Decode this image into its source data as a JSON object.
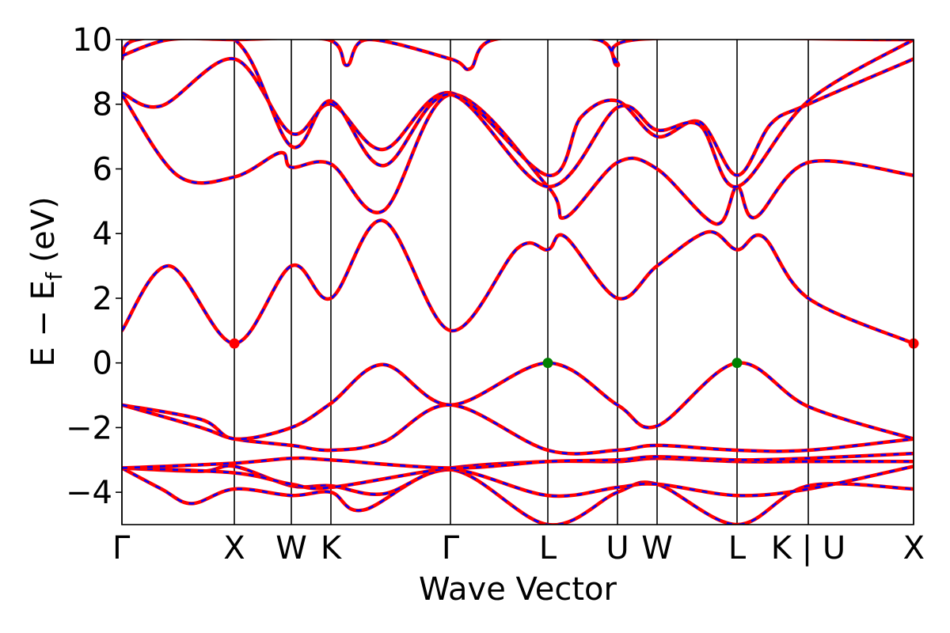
{
  "chart_data": {
    "type": "line",
    "xlabel": "Wave Vector",
    "ylabel": "E − E",
    "ylabel_sub": "f",
    "ylabel_unit": " (eV)",
    "ylim": [
      -5,
      10
    ],
    "yticks": [
      -4,
      -2,
      0,
      2,
      4,
      6,
      8,
      10
    ],
    "ytick_labels": [
      "−4",
      "−2",
      "0",
      "2",
      "4",
      "6",
      "8",
      "10"
    ],
    "kpath_range": [
      0,
      10
    ],
    "kpoints": [
      {
        "label": "Γ",
        "x": 0.0
      },
      {
        "label": "X",
        "x": 1.42
      },
      {
        "label": "W",
        "x": 2.14
      },
      {
        "label": "K",
        "x": 2.64
      },
      {
        "label": "Γ",
        "x": 4.15
      },
      {
        "label": "L",
        "x": 5.38
      },
      {
        "label": "U",
        "x": 6.26
      },
      {
        "label": "W",
        "x": 6.76
      },
      {
        "label": "L",
        "x": 7.77
      },
      {
        "label": "K | U",
        "x": 8.67
      },
      {
        "label": "X",
        "x": 10.0
      }
    ],
    "line_colors": {
      "dft": "#ff0000",
      "wannier": "#0000ff"
    },
    "markers": [
      {
        "x": 1.42,
        "y": 0.6,
        "color": "#ff0000",
        "meaning": "CBM"
      },
      {
        "x": 10.0,
        "y": 0.6,
        "color": "#ff0000",
        "meaning": "CBM"
      },
      {
        "x": 5.38,
        "y": 0.0,
        "color": "#008000",
        "meaning": "VBM"
      },
      {
        "x": 7.77,
        "y": 0.0,
        "color": "#008000",
        "meaning": "VBM"
      }
    ],
    "bands": [
      {
        "name": "",
        "points": [
          [
            0,
            -3.25
          ],
          [
            0.5,
            -3.9
          ],
          [
            0.88,
            -4.35
          ],
          [
            1.42,
            -3.9
          ],
          [
            2.14,
            -4.1
          ],
          [
            2.64,
            -4.0
          ],
          [
            3.05,
            -4.55
          ],
          [
            4.15,
            -3.3
          ],
          [
            5.38,
            -5.0
          ],
          [
            6.26,
            -4.0
          ],
          [
            6.76,
            -3.75
          ],
          [
            7.77,
            -5.0
          ],
          [
            8.67,
            -3.8
          ],
          [
            10.0,
            -3.9
          ]
        ]
      },
      {
        "name": "",
        "points": [
          [
            0,
            -3.25
          ],
          [
            1.0,
            -3.35
          ],
          [
            1.42,
            -3.2
          ],
          [
            2.14,
            -3.8
          ],
          [
            2.64,
            -3.8
          ],
          [
            3.3,
            -4.05
          ],
          [
            4.15,
            -3.3
          ],
          [
            5.38,
            -4.1
          ],
          [
            6.26,
            -3.85
          ],
          [
            6.76,
            -3.75
          ],
          [
            7.77,
            -4.1
          ],
          [
            8.67,
            -3.9
          ],
          [
            10.0,
            -3.2
          ]
        ]
      },
      {
        "name": "",
        "points": [
          [
            0,
            -3.25
          ],
          [
            1.42,
            -3.4
          ],
          [
            2.14,
            -3.75
          ],
          [
            2.64,
            -3.85
          ],
          [
            4.15,
            -3.25
          ],
          [
            5.38,
            -3.05
          ],
          [
            6.26,
            -3.05
          ],
          [
            6.76,
            -2.95
          ],
          [
            7.77,
            -3.05
          ],
          [
            8.67,
            -3.05
          ],
          [
            10.0,
            -3.05
          ]
        ]
      },
      {
        "name": "",
        "points": [
          [
            0,
            -3.25
          ],
          [
            1.42,
            -3.1
          ],
          [
            2.14,
            -2.95
          ],
          [
            2.64,
            -3.0
          ],
          [
            4.15,
            -3.25
          ],
          [
            5.38,
            -3.05
          ],
          [
            6.26,
            -3.0
          ],
          [
            6.76,
            -2.9
          ],
          [
            7.77,
            -3.0
          ],
          [
            8.67,
            -2.95
          ],
          [
            10.0,
            -2.8
          ]
        ]
      },
      {
        "name": "",
        "points": [
          [
            0,
            -1.3
          ],
          [
            1.0,
            -2.0
          ],
          [
            1.42,
            -2.35
          ],
          [
            2.14,
            -2.55
          ],
          [
            2.64,
            -2.7
          ],
          [
            3.3,
            -2.45
          ],
          [
            4.15,
            -1.3
          ],
          [
            5.38,
            -2.7
          ],
          [
            6.26,
            -2.7
          ],
          [
            6.76,
            -2.55
          ],
          [
            7.77,
            -2.7
          ],
          [
            8.67,
            -2.7
          ],
          [
            10.0,
            -2.35
          ]
        ]
      },
      {
        "name": "",
        "points": [
          [
            0,
            -1.3
          ],
          [
            1.0,
            -1.75
          ],
          [
            1.42,
            -2.35
          ],
          [
            2.14,
            -2.0
          ],
          [
            2.64,
            -1.25
          ],
          [
            3.3,
            -0.05
          ],
          [
            4.15,
            -1.3
          ],
          [
            5.38,
            0.0
          ],
          [
            6.26,
            -1.3
          ],
          [
            6.76,
            -1.95
          ],
          [
            7.77,
            0.0
          ],
          [
            8.67,
            -1.35
          ],
          [
            10.0,
            -2.35
          ]
        ]
      },
      {
        "name": "",
        "points": [
          [
            0,
            1.0
          ],
          [
            0.6,
            3.0
          ],
          [
            1.42,
            0.6
          ],
          [
            2.14,
            3.0
          ],
          [
            2.64,
            2.0
          ],
          [
            3.3,
            4.4
          ],
          [
            4.15,
            1.0
          ],
          [
            5.0,
            3.55
          ],
          [
            5.38,
            3.5
          ],
          [
            5.6,
            3.9
          ],
          [
            6.26,
            2.0
          ],
          [
            6.76,
            3.0
          ],
          [
            7.4,
            4.05
          ],
          [
            7.77,
            3.5
          ],
          [
            8.1,
            3.9
          ],
          [
            8.67,
            2.0
          ],
          [
            10.0,
            0.6
          ]
        ]
      },
      {
        "name": "",
        "points": [
          [
            0,
            8.3
          ],
          [
            0.7,
            5.8
          ],
          [
            1.42,
            5.75
          ],
          [
            2.0,
            6.5
          ],
          [
            2.14,
            6.05
          ],
          [
            2.64,
            6.15
          ],
          [
            3.3,
            4.7
          ],
          [
            4.15,
            8.3
          ],
          [
            5.38,
            5.45
          ],
          [
            5.6,
            4.5
          ],
          [
            6.26,
            6.2
          ],
          [
            6.76,
            6.0
          ],
          [
            7.5,
            4.3
          ],
          [
            7.77,
            5.45
          ],
          [
            8.0,
            4.5
          ],
          [
            8.67,
            6.2
          ],
          [
            10.0,
            5.8
          ]
        ]
      },
      {
        "name": "",
        "points": [
          [
            0,
            8.35
          ],
          [
            0.5,
            7.95
          ],
          [
            1.42,
            9.4
          ],
          [
            2.14,
            7.1
          ],
          [
            2.64,
            8.0
          ],
          [
            3.3,
            6.6
          ],
          [
            4.15,
            8.35
          ],
          [
            5.38,
            5.8
          ],
          [
            5.8,
            7.6
          ],
          [
            6.26,
            8.1
          ],
          [
            6.76,
            7.0
          ],
          [
            7.3,
            7.45
          ],
          [
            7.77,
            5.8
          ],
          [
            8.2,
            7.4
          ],
          [
            8.67,
            8.0
          ],
          [
            10.0,
            9.4
          ]
        ]
      },
      {
        "name": "",
        "points": [
          [
            0,
            9.4
          ],
          [
            0.2,
            10.0
          ],
          [
            1.42,
            10.0
          ],
          [
            2.14,
            6.7
          ],
          [
            2.64,
            8.1
          ],
          [
            3.3,
            6.1
          ],
          [
            4.15,
            8.3
          ],
          [
            5.38,
            5.45
          ],
          [
            6.26,
            7.9
          ],
          [
            6.76,
            7.2
          ],
          [
            7.3,
            7.35
          ],
          [
            7.77,
            5.45
          ],
          [
            8.67,
            8.1
          ],
          [
            10.0,
            10.0
          ]
        ]
      },
      {
        "name": "",
        "points": [
          [
            0,
            9.5
          ],
          [
            0.6,
            10.0
          ],
          [
            1.42,
            10.0
          ],
          [
            2.6,
            10.0
          ],
          [
            2.84,
            9.2
          ],
          [
            3.1,
            10.0
          ],
          [
            4.15,
            9.4
          ],
          [
            4.4,
            9.1
          ],
          [
            4.7,
            10.0
          ],
          [
            6.0,
            10.0
          ],
          [
            6.26,
            9.2
          ],
          [
            6.5,
            10.0
          ],
          [
            9.7,
            10.0
          ],
          [
            10.0,
            10.0
          ]
        ]
      }
    ]
  }
}
